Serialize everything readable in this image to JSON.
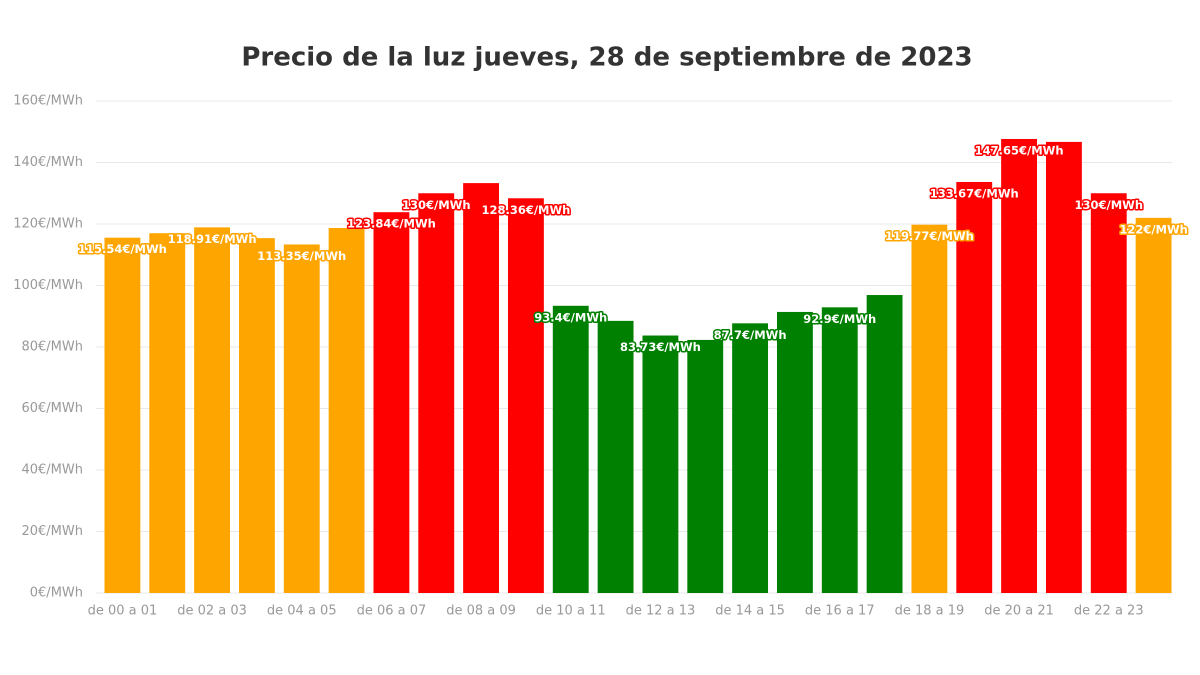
{
  "chart_data": {
    "type": "bar",
    "title": "Precio de la luz jueves, 28 de septiembre de 2023",
    "categories": [
      "de 00 a 01",
      null,
      "de 02 a 03",
      null,
      "de 04 a 05",
      null,
      "de 06 a 07",
      null,
      "de 08 a 09",
      null,
      "de 10 a 11",
      null,
      "de 12 a 13",
      null,
      "de 14 a 15",
      null,
      "de 16 a 17",
      null,
      "de 18 a 19",
      null,
      "de 20 a 21",
      null,
      "de 22 a 23",
      null
    ],
    "values": [
      115.54,
      117,
      118.91,
      115.4,
      113.35,
      118.7,
      123.84,
      130,
      133.3,
      128.36,
      93.4,
      88.5,
      83.73,
      82.3,
      87.7,
      91.4,
      92.9,
      96.9,
      119.77,
      133.67,
      147.65,
      146.7,
      130,
      122
    ],
    "value_labels": [
      "115.54€/MWh",
      null,
      "118.91€/MWh",
      null,
      "113.35€/MWh",
      null,
      "123.84€/MWh",
      "130€/MWh",
      null,
      "128.36€/MWh",
      "93.4€/MWh",
      null,
      "83.73€/MWh",
      null,
      "87.7€/MWh",
      null,
      "92.9€/MWh",
      null,
      "119.77€/MWh",
      "133.67€/MWh",
      "147.65€/MWh",
      null,
      "130€/MWh",
      "122€/MWh"
    ],
    "colors": [
      "#ffa500",
      "#ffa500",
      "#ffa500",
      "#ffa500",
      "#ffa500",
      "#ffa500",
      "#ff0000",
      "#ff0000",
      "#ff0000",
      "#ff0000",
      "#008000",
      "#008000",
      "#008000",
      "#008000",
      "#008000",
      "#008000",
      "#008000",
      "#008000",
      "#ffa500",
      "#ff0000",
      "#ff0000",
      "#ff0000",
      "#ff0000",
      "#ffa500"
    ],
    "ylim": [
      0,
      160
    ],
    "yticks": [
      {
        "value": 0,
        "label": "0€/MWh"
      },
      {
        "value": 20,
        "label": "20€/MWh"
      },
      {
        "value": 40,
        "label": "40€/MWh"
      },
      {
        "value": 60,
        "label": "60€/MWh"
      },
      {
        "value": 80,
        "label": "80€/MWh"
      },
      {
        "value": 100,
        "label": "100€/MWh"
      },
      {
        "value": 120,
        "label": "120€/MWh"
      },
      {
        "value": 140,
        "label": "140€/MWh"
      },
      {
        "value": 160,
        "label": "160€/MWh"
      }
    ],
    "grid": true
  }
}
